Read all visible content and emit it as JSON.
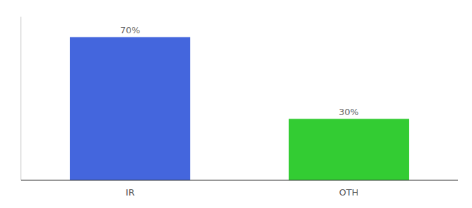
{
  "chart_data": {
    "type": "bar",
    "categories": [
      "IR",
      "OTH"
    ],
    "values": [
      70,
      30
    ],
    "value_labels": [
      "70%",
      "30%"
    ],
    "colors": [
      "#4466dd",
      "#33cc33"
    ],
    "ylim": [
      0,
      80
    ],
    "data_labels": true,
    "tick_labels": "x"
  }
}
